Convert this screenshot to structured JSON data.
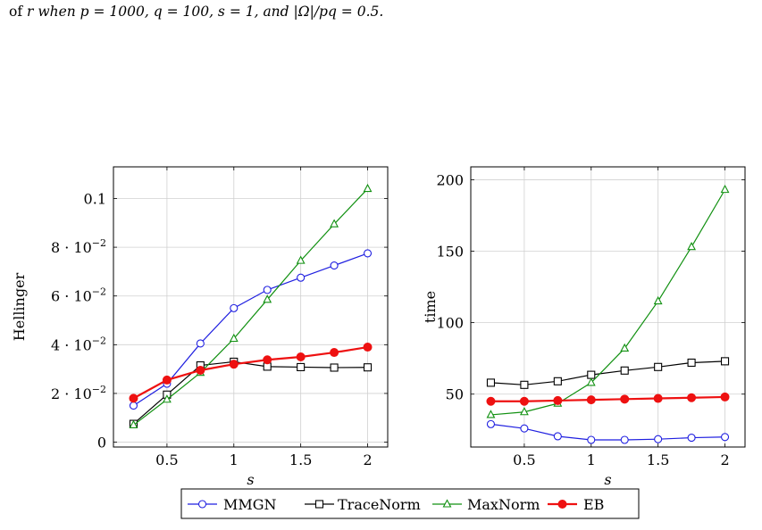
{
  "caption": {
    "prefix": "of ",
    "expr": "r when p = 1000, q = 100, s = 1, and |Ω|/pq = 0.5."
  },
  "legend": [
    "MMGN",
    "TraceNorm",
    "MaxNorm",
    "EB"
  ],
  "colors": {
    "MMGN": "#1f1fe0",
    "TraceNorm": "#000000",
    "MaxNorm": "#109010",
    "EB": "#ee1111"
  },
  "chart_data": [
    {
      "type": "line",
      "xlabel": "s",
      "ylabel": "Hellinger",
      "xlim": [
        0.1,
        2.15
      ],
      "ylim": [
        -0.002,
        0.113
      ],
      "x_ticks": [
        0.5,
        1,
        1.5,
        2
      ],
      "x_tick_labels": [
        "0.5",
        "1",
        "1.5",
        "2"
      ],
      "y_ticks": [
        0,
        0.02,
        0.04,
        0.06,
        0.08,
        0.1
      ],
      "y_tick_labels": [
        {
          "base": "0",
          "exp": ""
        },
        {
          "base": "2 · 10",
          "exp": "−2"
        },
        {
          "base": "4 · 10",
          "exp": "−2"
        },
        {
          "base": "6 · 10",
          "exp": "−2"
        },
        {
          "base": "8 · 10",
          "exp": "−2"
        },
        {
          "base": "0.1",
          "exp": ""
        }
      ],
      "grid": true,
      "x": [
        0.25,
        0.5,
        0.75,
        1,
        1.25,
        1.5,
        1.75,
        2
      ],
      "series": [
        {
          "name": "MMGN",
          "values": [
            0.015,
            0.024,
            0.0405,
            0.055,
            0.0625,
            0.0675,
            0.0725,
            0.0775
          ]
        },
        {
          "name": "TraceNorm",
          "values": [
            0.0075,
            0.0195,
            0.0315,
            0.033,
            0.031,
            0.0308,
            0.0306,
            0.0307
          ]
        },
        {
          "name": "MaxNorm",
          "values": [
            0.007,
            0.0175,
            0.0285,
            0.0425,
            0.0585,
            0.0745,
            0.0895,
            0.104
          ]
        },
        {
          "name": "EB",
          "values": [
            0.018,
            0.0255,
            0.0295,
            0.032,
            0.0338,
            0.035,
            0.0368,
            0.039
          ]
        }
      ]
    },
    {
      "type": "line",
      "xlabel": "s",
      "ylabel": "time",
      "xlim": [
        0.1,
        2.15
      ],
      "ylim": [
        13,
        209
      ],
      "x_ticks": [
        0.5,
        1,
        1.5,
        2
      ],
      "x_tick_labels": [
        "0.5",
        "1",
        "1.5",
        "2"
      ],
      "y_ticks": [
        50,
        100,
        150,
        200
      ],
      "y_tick_labels": [
        {
          "base": "50",
          "exp": ""
        },
        {
          "base": "100",
          "exp": ""
        },
        {
          "base": "150",
          "exp": ""
        },
        {
          "base": "200",
          "exp": ""
        }
      ],
      "grid": true,
      "x": [
        0.25,
        0.5,
        0.75,
        1,
        1.25,
        1.5,
        1.75,
        2
      ],
      "series": [
        {
          "name": "MMGN",
          "values": [
            29,
            26,
            20.5,
            18,
            18,
            18.5,
            19.5,
            20
          ]
        },
        {
          "name": "TraceNorm",
          "values": [
            58,
            56.5,
            59,
            63.5,
            66.5,
            69,
            72,
            73
          ]
        },
        {
          "name": "MaxNorm",
          "values": [
            35.5,
            37.5,
            43.5,
            58,
            82,
            115,
            153,
            193
          ]
        },
        {
          "name": "EB",
          "values": [
            45,
            45,
            45.5,
            46,
            46.5,
            47,
            47.5,
            48
          ]
        }
      ]
    }
  ]
}
